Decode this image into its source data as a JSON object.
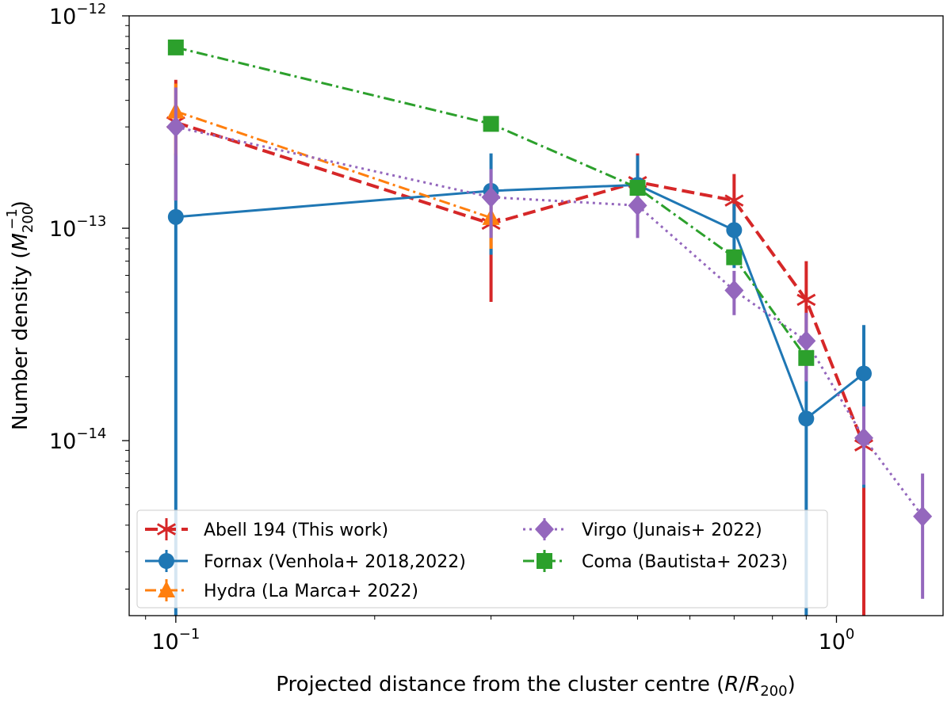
{
  "chart_data": {
    "type": "line",
    "x_scale": "log",
    "y_scale": "log",
    "xlim": [
      0.085,
      1.45
    ],
    "ylim": [
      1.5e-15,
      1e-12
    ],
    "xlabel": {
      "prefix": "Projected distance from the cluster centre (",
      "var": "R",
      "mid": "/",
      "var2": "R",
      "sub": "200",
      "suffix": ")"
    },
    "ylabel": {
      "prefix": "Number density (",
      "var": "M",
      "sub": "200",
      "sup": "−1",
      "suffix": ")"
    },
    "x_ticks": [
      {
        "value": 0.1,
        "base": "10",
        "exp": "−1"
      },
      {
        "value": 1.0,
        "base": "10",
        "exp": "0"
      }
    ],
    "y_ticks": [
      {
        "value": 1e-12,
        "base": "10",
        "exp": "−12"
      },
      {
        "value": 1e-13,
        "base": "10",
        "exp": "−13"
      },
      {
        "value": 1e-14,
        "base": "10",
        "exp": "−14"
      }
    ],
    "legend": {
      "position": "lower-left",
      "columns": 2
    },
    "series": [
      {
        "name": "Abell 194 (This work)",
        "color": "#d62728",
        "marker": "x-star",
        "line_style": "dashed",
        "points": [
          {
            "x": 0.1,
            "y": 3.15e-13,
            "lo": 1.35e-13,
            "hi": 5e-13
          },
          {
            "x": 0.3,
            "y": 1.05e-13,
            "lo": 4.5e-14,
            "hi": 1.6e-13
          },
          {
            "x": 0.5,
            "y": 1.65e-13,
            "lo": 1.1e-13,
            "hi": 2.25e-13
          },
          {
            "x": 0.7,
            "y": 1.35e-13,
            "lo": 9e-14,
            "hi": 1.8e-13
          },
          {
            "x": 0.9,
            "y": 4.6e-14,
            "lo": 2.4e-14,
            "hi": 7e-14
          },
          {
            "x": 1.1,
            "y": 9.5e-15,
            "lo": 1.5e-15,
            "hi": 1.5e-14
          }
        ]
      },
      {
        "name": "Fornax (Venhola+ 2018,2022)",
        "color": "#1f77b4",
        "marker": "circle",
        "line_style": "solid",
        "points": [
          {
            "x": 0.1,
            "y": 1.13e-13,
            "lo": 1.5e-15,
            "hi": 2.25e-13
          },
          {
            "x": 0.3,
            "y": 1.5e-13,
            "lo": 7.5e-14,
            "hi": 2.25e-13
          },
          {
            "x": 0.5,
            "y": 1.6e-13,
            "lo": 1e-13,
            "hi": 2.2e-13
          },
          {
            "x": 0.7,
            "y": 9.8e-14,
            "lo": 6.5e-14,
            "hi": 1.3e-13
          },
          {
            "x": 0.9,
            "y": 1.27e-14,
            "lo": 1.5e-15,
            "hi": 2.4e-14
          },
          {
            "x": 1.1,
            "y": 2.07e-14,
            "lo": 6e-15,
            "hi": 3.5e-14
          }
        ]
      },
      {
        "name": "Hydra (La Marca+ 2022)",
        "color": "#ff7f0e",
        "marker": "triangle",
        "line_style": "dashdot",
        "points": [
          {
            "x": 0.1,
            "y": 3.55e-13,
            "lo": 2.2e-13,
            "hi": 4.8e-13
          },
          {
            "x": 0.3,
            "y": 1.12e-13,
            "lo": 8e-14,
            "hi": 1.45e-13
          }
        ]
      },
      {
        "name": "Virgo (Junais+ 2022)",
        "color": "#9467bd",
        "marker": "diamond",
        "line_style": "dotted",
        "points": [
          {
            "x": 0.1,
            "y": 3e-13,
            "lo": 1.35e-13,
            "hi": 4.6e-13
          },
          {
            "x": 0.3,
            "y": 1.4e-13,
            "lo": 9e-14,
            "hi": 1.9e-13
          },
          {
            "x": 0.5,
            "y": 1.28e-13,
            "lo": 9e-14,
            "hi": 1.65e-13
          },
          {
            "x": 0.7,
            "y": 5.1e-14,
            "lo": 3.9e-14,
            "hi": 6.3e-14
          },
          {
            "x": 0.9,
            "y": 2.95e-14,
            "lo": 1.9e-14,
            "hi": 4e-14
          },
          {
            "x": 1.1,
            "y": 1.03e-14,
            "lo": 6.2e-15,
            "hi": 1.45e-14
          },
          {
            "x": 1.35,
            "y": 4.4e-15,
            "lo": 1.8e-15,
            "hi": 7e-15
          }
        ]
      },
      {
        "name": "Coma (Bautista+ 2023)",
        "color": "#2ca02c",
        "marker": "square",
        "line_style": "dashdot",
        "points": [
          {
            "x": 0.1,
            "y": 7.1e-13
          },
          {
            "x": 0.3,
            "y": 3.1e-13
          },
          {
            "x": 0.5,
            "y": 1.55e-13
          },
          {
            "x": 0.7,
            "y": 7.3e-14
          },
          {
            "x": 0.9,
            "y": 2.45e-14
          }
        ]
      }
    ]
  }
}
